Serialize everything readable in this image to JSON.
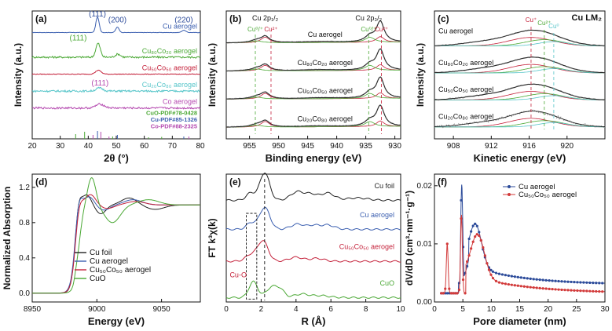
{
  "chart_data": [
    {
      "id": "a",
      "type": "line",
      "panel_label": "(a)",
      "xlabel": "2θ (°)",
      "ylabel": "Intensity (a.u.)",
      "xlim": [
        20,
        80
      ],
      "xticks": [
        "20",
        "30",
        "40",
        "50",
        "60",
        "70",
        "80"
      ],
      "series": [
        {
          "name": "Cu aerogel",
          "color": "#3b5fb0",
          "offset": 5.0,
          "noise": 0.02,
          "peaks": [
            [
              43.3,
              1.0,
              0.6
            ],
            [
              50.4,
              0.35,
              0.6
            ],
            [
              74.1,
              0.15,
              0.7
            ]
          ]
        },
        {
          "name": "Cu₈₀Co₂₀ aerogel",
          "color": "#4aa834",
          "offset": 3.4,
          "noise": 0.12,
          "peaks": [
            [
              43.5,
              0.9,
              0.8
            ],
            [
              50.6,
              0.2,
              0.9
            ]
          ]
        },
        {
          "name": "Cu₅₀Co₅₀ aerogel",
          "color": "#c4213a",
          "offset": 2.3,
          "noise": 0.04,
          "peaks": [
            [
              43.6,
              0.25,
              1.0
            ]
          ]
        },
        {
          "name": "Cu₂₀Co₈₀ aerogel",
          "color": "#56c5c9",
          "offset": 1.2,
          "noise": 0.12,
          "peaks": [
            [
              44.0,
              0.2,
              1.2
            ]
          ]
        },
        {
          "name": "Co aerogel",
          "color": "#b54ab0",
          "offset": 0.1,
          "noise": 0.12,
          "peaks": [
            [
              44.2,
              0.25,
              1.5
            ]
          ]
        }
      ],
      "peak_labels": [
        {
          "text": "(111)",
          "x": 43.3,
          "color": "#2c4b9a"
        },
        {
          "text": "(200)",
          "x": 50.4,
          "color": "#2c4b9a"
        },
        {
          "text": "(220)",
          "x": 74.1,
          "color": "#2c4b9a"
        },
        {
          "text": "(111)",
          "x": 36.4,
          "color": "#4aa834"
        },
        {
          "text": "(111)",
          "x": 44.2,
          "color": "#b54ab0"
        }
      ],
      "reference_legend": [
        {
          "text": "CuO-PDF#78-0428",
          "color": "#4aa834"
        },
        {
          "text": "Cu-PDF#85-1326",
          "color": "#3b5fb0"
        },
        {
          "text": "Co-PDF#88-2325",
          "color": "#b54ab0"
        }
      ],
      "reference_sticks": [
        {
          "x": 35.5,
          "h": 0.6,
          "color": "#4aa834"
        },
        {
          "x": 38.7,
          "h": 0.9,
          "color": "#4aa834"
        },
        {
          "x": 48.7,
          "h": 0.3,
          "color": "#4aa834"
        },
        {
          "x": 61.5,
          "h": 0.2,
          "color": "#4aa834"
        },
        {
          "x": 66.2,
          "h": 0.25,
          "color": "#4aa834"
        },
        {
          "x": 43.3,
          "h": 1.0,
          "color": "#3b5fb0"
        },
        {
          "x": 50.4,
          "h": 0.5,
          "color": "#3b5fb0"
        },
        {
          "x": 74.1,
          "h": 0.3,
          "color": "#3b5fb0"
        },
        {
          "x": 41.7,
          "h": 0.5,
          "color": "#b54ab0"
        },
        {
          "x": 44.5,
          "h": 0.9,
          "color": "#b54ab0"
        },
        {
          "x": 47.4,
          "h": 0.3,
          "color": "#b54ab0"
        },
        {
          "x": 75.9,
          "h": 0.3,
          "color": "#b54ab0"
        }
      ]
    },
    {
      "id": "b",
      "type": "line",
      "panel_label": "(b)",
      "xlabel": "Binding energy (eV)",
      "ylabel": "Intensity (a.u.)",
      "xlim": [
        959,
        929
      ],
      "xticks": [
        "955",
        "950",
        "945",
        "940",
        "935",
        "930"
      ],
      "series": [
        {
          "name": "Cu aerogel",
          "offset": 3.0
        },
        {
          "name": "Cu₈₀Co₂₀ aerogel",
          "offset": 2.0
        },
        {
          "name": "Cu₅₀Co₅₀ aerogel",
          "offset": 1.0
        },
        {
          "name": "Cu₂₀Co₈₀ aerogel",
          "offset": 0.0
        }
      ],
      "peak_markers": [
        {
          "text": "Cu 2p₁/₂",
          "x": 952.3
        },
        {
          "text": "Cu 2p₃/₂",
          "x": 932.5
        },
        {
          "text": "Cu⁰/⁺",
          "x": 954.0,
          "color": "#4aa834"
        },
        {
          "text": "Cu²⁺",
          "x": 951.3,
          "color": "#c4213a"
        },
        {
          "text": "Cu⁰/⁺",
          "x": 934.5,
          "color": "#4aa834"
        },
        {
          "text": "Cu²⁺",
          "x": 932.3,
          "color": "#c4213a"
        }
      ]
    },
    {
      "id": "c",
      "type": "line",
      "panel_label": "(c)",
      "title": "Cu LM₂",
      "xlabel": "Kinetic energy (eV)",
      "ylabel": "Intensity (a.u.)",
      "xlim": [
        906,
        924
      ],
      "xticks": [
        "908",
        "912",
        "916",
        "920"
      ],
      "series": [
        {
          "name": "Cu aerogel",
          "offset": 3.0
        },
        {
          "name": "Cu₈₀Co₂₀ aerogel",
          "offset": 2.0
        },
        {
          "name": "Cu₅₀Co₅₀ aerogel",
          "offset": 1.0
        },
        {
          "name": "Cu₂₀Co₈₀ aerogel",
          "offset": 0.0
        }
      ],
      "components": [
        {
          "text": "Cu⁺",
          "x": 916.2,
          "color": "#c4213a"
        },
        {
          "text": "Cu²⁺",
          "x": 917.6,
          "color": "#4aa834"
        },
        {
          "text": "Cu⁰",
          "x": 918.6,
          "color": "#56c5c9"
        }
      ]
    },
    {
      "id": "d",
      "type": "line",
      "panel_label": "(d)",
      "xlabel": "Energy (eV)",
      "ylabel": "Normalized Absorption",
      "xlim": [
        8950,
        9080
      ],
      "ylim": [
        -0.1,
        1.35
      ],
      "xticks": [
        "8950",
        "9000",
        "9050"
      ],
      "yticks": [
        "0.0",
        "0.4",
        "0.8",
        "1.2"
      ],
      "series": [
        {
          "name": "Cu foil",
          "color": "#222222"
        },
        {
          "name": "Cu aerogel",
          "color": "#3b5fb0"
        },
        {
          "name": "Cu₅₀Co₅₀ aerogel",
          "color": "#c4213a"
        },
        {
          "name": "CuO",
          "color": "#4aa834"
        }
      ]
    },
    {
      "id": "e",
      "type": "line",
      "panel_label": "(e)",
      "xlabel": "R (Å)",
      "ylabel": "FT k³χ(k)",
      "xlim": [
        0,
        10
      ],
      "xticks": [
        "0",
        "2",
        "4",
        "6",
        "8",
        "10"
      ],
      "series": [
        {
          "name": "Cu foil",
          "color": "#222222",
          "offset": 3.0
        },
        {
          "name": "Cu aerogel",
          "color": "#3b5fb0",
          "offset": 2.0
        },
        {
          "name": "Cu₅₀Co₅₀ aerogel",
          "color": "#c4213a",
          "offset": 1.0
        },
        {
          "name": "CuO",
          "color": "#4aa834",
          "offset": 0.0
        }
      ],
      "annotation": "Cu-O"
    },
    {
      "id": "f",
      "type": "line",
      "panel_label": "(f)",
      "xlabel": "Pore diameter (nm)",
      "ylabel": "dV/dD (cm³·nm⁻¹·g⁻¹)",
      "xlim": [
        0,
        30
      ],
      "ylim": [
        0,
        0.022
      ],
      "xticks": [
        "0",
        "5",
        "10",
        "15",
        "20",
        "25",
        "30"
      ],
      "yticks": [
        "0.00",
        "0.01",
        "0.02"
      ],
      "series": [
        {
          "name": "Cu aerogel",
          "color": "#2c4b9a"
        },
        {
          "name": "Cu₅₀Co₅₀ aerogel",
          "color": "#d23a3a"
        }
      ]
    }
  ]
}
